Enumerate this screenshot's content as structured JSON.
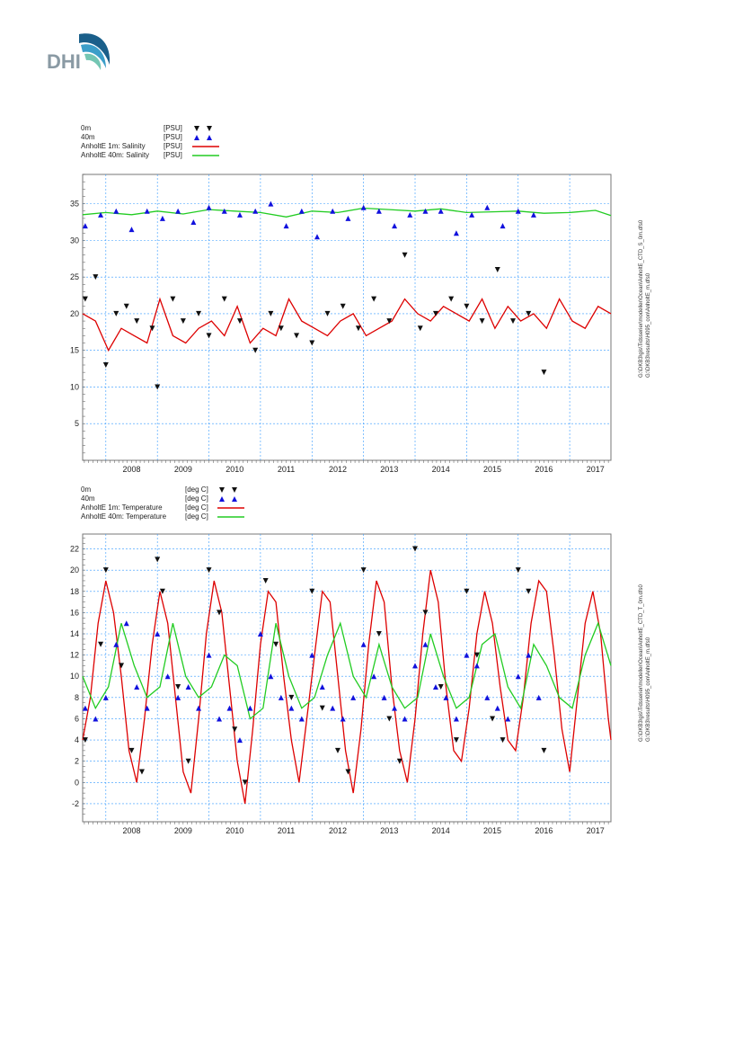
{
  "logo": {
    "text": "DHI",
    "colors": {
      "text": "#8a9aa4",
      "wave_dark": "#1a5f8a",
      "wave_mid": "#3b9ec9",
      "wave_light": "#74c6b3"
    }
  },
  "colors": {
    "red": "#dd0000",
    "green": "#22cc22",
    "black_marker": "#111111",
    "blue_marker": "#1111dd",
    "grid": "#3399ff"
  },
  "chart_data": [
    {
      "type": "line",
      "legend": [
        {
          "name": "0m",
          "unit": "[PSU]",
          "symbol": "down-triangle",
          "color": "#111111"
        },
        {
          "name": "40m",
          "unit": "[PSU]",
          "symbol": "up-triangle",
          "color": "#1111dd"
        },
        {
          "name": "AnholtE 1m: Salinity",
          "unit": "[PSU]",
          "symbol": "line",
          "color": "#dd0000"
        },
        {
          "name": "AnholtE 40m: Salinity",
          "unit": "[PSU]",
          "symbol": "line",
          "color": "#22cc22"
        }
      ],
      "yticks": [
        "5",
        "10",
        "15",
        "20",
        "25",
        "30",
        "35"
      ],
      "ylim": [
        0,
        39
      ],
      "xticks": [
        "2008",
        "2009",
        "2010",
        "2011",
        "2012",
        "2013",
        "2014",
        "2015",
        "2016",
        "2017"
      ],
      "xlim": [
        2007.55,
        2017.8
      ],
      "side_text": [
        "G:\\DKB3\\gis\\Tidsserier\\modeller\\Ocean\\AnholtE_CTD_S_0m.dfs0",
        "G:\\DKB3\\results\\H095_con\\AnholtE_m.dfs0"
      ],
      "series": [
        {
          "name": "AnholtE 1m: Salinity",
          "kind": "line",
          "color": "#dd0000",
          "x": [
            2007.55,
            2007.8,
            2008.05,
            2008.3,
            2008.55,
            2008.8,
            2009.05,
            2009.3,
            2009.55,
            2009.8,
            2010.05,
            2010.3,
            2010.55,
            2010.8,
            2011.05,
            2011.3,
            2011.55,
            2011.8,
            2012.05,
            2012.3,
            2012.55,
            2012.8,
            2013.05,
            2013.3,
            2013.55,
            2013.8,
            2014.05,
            2014.3,
            2014.55,
            2014.8,
            2015.05,
            2015.3,
            2015.55,
            2015.8,
            2016.05,
            2016.3,
            2016.55,
            2016.8,
            2017.05,
            2017.3,
            2017.55,
            2017.8
          ],
          "y": [
            20,
            19,
            15,
            18,
            17,
            16,
            22,
            17,
            16,
            18,
            19,
            17,
            21,
            16,
            18,
            17,
            22,
            19,
            18,
            17,
            19,
            20,
            17,
            18,
            19,
            22,
            20,
            19,
            21,
            20,
            19,
            22,
            18,
            21,
            19,
            20,
            18,
            22,
            19,
            18,
            21,
            20
          ]
        },
        {
          "name": "AnholtE 40m: Salinity",
          "kind": "line",
          "color": "#22cc22",
          "x": [
            2007.55,
            2008.0,
            2008.5,
            2009.0,
            2009.5,
            2010.0,
            2010.5,
            2011.0,
            2011.5,
            2012.0,
            2012.5,
            2013.0,
            2013.5,
            2014.0,
            2014.5,
            2015.0,
            2015.5,
            2016.0,
            2016.5,
            2017.0,
            2017.5,
            2017.8
          ],
          "y": [
            33.5,
            33.8,
            33.5,
            34.0,
            33.6,
            34.2,
            34.0,
            33.8,
            33.2,
            34.0,
            33.8,
            34.4,
            34.2,
            34.0,
            34.3,
            33.8,
            33.9,
            34.0,
            33.7,
            33.8,
            34.1,
            33.4
          ]
        },
        {
          "name": "0m",
          "kind": "scatter",
          "marker": "down-triangle",
          "color": "#111111",
          "x": [
            2007.6,
            2007.8,
            2008.0,
            2008.2,
            2008.4,
            2008.6,
            2008.9,
            2009.0,
            2009.3,
            2009.5,
            2009.8,
            2010.0,
            2010.3,
            2010.6,
            2010.9,
            2011.2,
            2011.4,
            2011.7,
            2012.0,
            2012.3,
            2012.6,
            2012.9,
            2013.2,
            2013.5,
            2013.8,
            2014.1,
            2014.4,
            2014.7,
            2015.0,
            2015.3,
            2015.6,
            2015.9,
            2016.2,
            2016.5
          ],
          "y": [
            22,
            25,
            13,
            20,
            21,
            19,
            18,
            10,
            22,
            19,
            20,
            17,
            22,
            19,
            15,
            20,
            18,
            17,
            16,
            20,
            21,
            18,
            22,
            19,
            28,
            18,
            20,
            22,
            21,
            19,
            26,
            19,
            20,
            12
          ]
        },
        {
          "name": "40m",
          "kind": "scatter",
          "marker": "up-triangle",
          "color": "#1111dd",
          "x": [
            2007.6,
            2007.9,
            2008.2,
            2008.5,
            2008.8,
            2009.1,
            2009.4,
            2009.7,
            2010.0,
            2010.3,
            2010.6,
            2010.9,
            2011.2,
            2011.5,
            2011.8,
            2012.1,
            2012.4,
            2012.7,
            2013.0,
            2013.3,
            2013.6,
            2013.9,
            2014.2,
            2014.5,
            2014.8,
            2015.1,
            2015.4,
            2015.7,
            2016.0,
            2016.3
          ],
          "y": [
            32,
            33.5,
            34,
            31.5,
            34,
            33,
            34,
            32.5,
            34.5,
            34,
            33.5,
            34,
            35,
            32,
            34,
            30.5,
            34,
            33,
            34.5,
            34,
            32,
            33.5,
            34,
            34,
            31,
            33.5,
            34.5,
            32,
            34,
            33.5
          ]
        }
      ]
    },
    {
      "type": "line",
      "legend": [
        {
          "name": "0m",
          "unit": "[deg C]",
          "symbol": "down-triangle",
          "color": "#111111"
        },
        {
          "name": "40m",
          "unit": "[deg C]",
          "symbol": "up-triangle",
          "color": "#1111dd"
        },
        {
          "name": "AnholtE 1m: Temperature",
          "unit": "[deg C]",
          "symbol": "line",
          "color": "#dd0000"
        },
        {
          "name": "AnholtE 40m: Temperature",
          "unit": "[deg C]",
          "symbol": "line",
          "color": "#22cc22"
        }
      ],
      "yticks": [
        "-2",
        "0",
        "2",
        "4",
        "6",
        "8",
        "10",
        "12",
        "14",
        "16",
        "18",
        "20",
        "22"
      ],
      "ylim": [
        -3.7,
        23.4
      ],
      "xticks": [
        "2008",
        "2009",
        "2010",
        "2011",
        "2012",
        "2013",
        "2014",
        "2015",
        "2016",
        "2017"
      ],
      "xlim": [
        2007.55,
        2017.8
      ],
      "side_text": [
        "G:\\DKB3\\gis\\Tidsserier\\modeller\\Ocean\\AnholtE_CTD_T_0m.dfs0",
        "G:\\DKB3\\results\\H095_con\\AnholtE_m.dfs0"
      ],
      "series": [
        {
          "name": "AnholtE 1m: Temperature",
          "kind": "line",
          "color": "#dd0000",
          "x": [
            2007.55,
            2007.7,
            2007.85,
            2008.0,
            2008.15,
            2008.3,
            2008.45,
            2008.6,
            2008.75,
            2008.9,
            2009.05,
            2009.2,
            2009.35,
            2009.5,
            2009.65,
            2009.8,
            2009.95,
            2010.1,
            2010.25,
            2010.4,
            2010.55,
            2010.7,
            2010.85,
            2011.0,
            2011.15,
            2011.3,
            2011.45,
            2011.6,
            2011.75,
            2011.9,
            2012.05,
            2012.2,
            2012.35,
            2012.5,
            2012.65,
            2012.8,
            2012.95,
            2013.1,
            2013.25,
            2013.4,
            2013.55,
            2013.7,
            2013.85,
            2014.0,
            2014.15,
            2014.3,
            2014.45,
            2014.6,
            2014.75,
            2014.9,
            2015.05,
            2015.2,
            2015.35,
            2015.5,
            2015.65,
            2015.8,
            2015.95,
            2016.1,
            2016.25,
            2016.4,
            2016.55,
            2016.7,
            2016.85,
            2017.0,
            2017.15,
            2017.3,
            2017.45,
            2017.6,
            2017.75,
            2017.8
          ],
          "y": [
            4,
            8,
            15,
            19,
            16,
            10,
            3,
            0,
            6,
            13,
            18,
            15,
            8,
            1,
            -1,
            6,
            14,
            19,
            16,
            9,
            2,
            -2,
            5,
            13,
            18,
            17,
            10,
            4,
            0,
            6,
            12,
            18,
            17,
            10,
            3,
            -1,
            5,
            13,
            19,
            17,
            9,
            3,
            0,
            6,
            14,
            20,
            17,
            9,
            3,
            2,
            7,
            14,
            18,
            15,
            9,
            4,
            3,
            8,
            15,
            19,
            18,
            12,
            5,
            1,
            8,
            15,
            18,
            14,
            6,
            4
          ]
        },
        {
          "name": "AnholtE 40m: Temperature",
          "kind": "line",
          "color": "#22cc22",
          "x": [
            2007.55,
            2007.8,
            2008.05,
            2008.3,
            2008.55,
            2008.8,
            2009.05,
            2009.3,
            2009.55,
            2009.8,
            2010.05,
            2010.3,
            2010.55,
            2010.8,
            2011.05,
            2011.3,
            2011.55,
            2011.8,
            2012.05,
            2012.3,
            2012.55,
            2012.8,
            2013.05,
            2013.3,
            2013.55,
            2013.8,
            2014.05,
            2014.3,
            2014.55,
            2014.8,
            2015.05,
            2015.3,
            2015.55,
            2015.8,
            2016.05,
            2016.3,
            2016.55,
            2016.8,
            2017.05,
            2017.3,
            2017.55,
            2017.8
          ],
          "y": [
            10,
            7,
            9,
            15,
            11,
            8,
            9,
            15,
            10,
            8,
            9,
            12,
            11,
            6,
            7,
            15,
            10,
            7,
            8,
            12,
            15,
            10,
            8,
            13,
            9,
            7,
            8,
            14,
            10,
            7,
            8,
            13,
            14,
            9,
            7,
            13,
            11,
            8,
            7,
            12,
            15,
            11
          ]
        },
        {
          "name": "0m",
          "kind": "scatter",
          "marker": "down-triangle",
          "color": "#111111",
          "x": [
            2007.6,
            2007.9,
            2008.0,
            2008.3,
            2008.5,
            2008.7,
            2009.0,
            2009.1,
            2009.4,
            2009.6,
            2010.0,
            2010.2,
            2010.5,
            2010.7,
            2011.1,
            2011.3,
            2011.6,
            2012.0,
            2012.2,
            2012.5,
            2012.7,
            2013.0,
            2013.3,
            2013.5,
            2013.7,
            2014.0,
            2014.2,
            2014.5,
            2014.8,
            2015.0,
            2015.2,
            2015.5,
            2015.7,
            2016.0,
            2016.2,
            2016.5
          ],
          "y": [
            4,
            13,
            20,
            11,
            3,
            1,
            21,
            18,
            9,
            2,
            20,
            16,
            5,
            0,
            19,
            13,
            8,
            18,
            7,
            3,
            1,
            20,
            14,
            6,
            2,
            22,
            16,
            9,
            4,
            18,
            12,
            6,
            4,
            20,
            18,
            3
          ]
        },
        {
          "name": "40m",
          "kind": "scatter",
          "marker": "up-triangle",
          "color": "#1111dd",
          "x": [
            2007.6,
            2007.8,
            2008.0,
            2008.2,
            2008.4,
            2008.6,
            2008.8,
            2009.0,
            2009.2,
            2009.4,
            2009.6,
            2009.8,
            2010.0,
            2010.2,
            2010.4,
            2010.6,
            2010.8,
            2011.0,
            2011.2,
            2011.4,
            2011.6,
            2011.8,
            2012.0,
            2012.2,
            2012.4,
            2012.6,
            2012.8,
            2013.0,
            2013.2,
            2013.4,
            2013.6,
            2013.8,
            2014.0,
            2014.2,
            2014.4,
            2014.6,
            2014.8,
            2015.0,
            2015.2,
            2015.4,
            2015.6,
            2015.8,
            2016.0,
            2016.2,
            2016.4
          ],
          "y": [
            7,
            6,
            8,
            13,
            15,
            9,
            7,
            14,
            10,
            8,
            9,
            7,
            12,
            6,
            7,
            4,
            7,
            14,
            10,
            8,
            7,
            6,
            12,
            9,
            7,
            6,
            8,
            13,
            10,
            8,
            7,
            6,
            11,
            13,
            9,
            8,
            6,
            12,
            11,
            8,
            7,
            6,
            10,
            12,
            8
          ]
        }
      ]
    }
  ]
}
